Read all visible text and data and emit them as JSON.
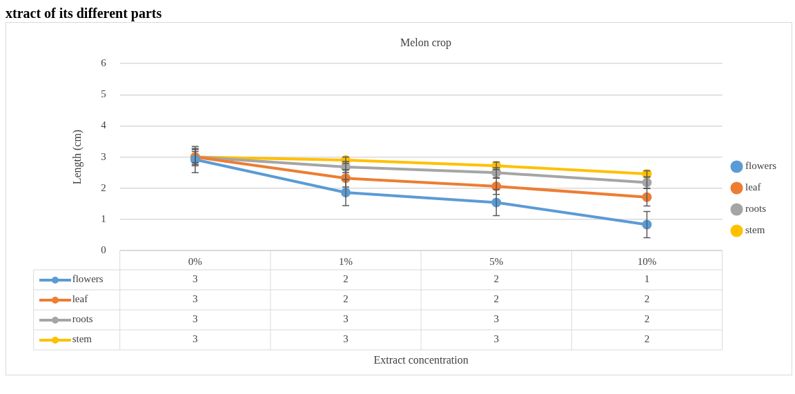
{
  "chart_data": {
    "type": "line",
    "title": "Melon crop",
    "ylabel": "Length (cm)",
    "annotations": [
      "xtract of its different parts",
      "Extract concentration"
    ],
    "categories": [
      "0%",
      "1%",
      "5%",
      "10%"
    ],
    "series": [
      {
        "name": "flowers",
        "color": "#5b9bd5",
        "values": [
          2.92,
          1.86,
          1.54,
          0.83
        ],
        "errors": [
          0.42,
          0.42,
          0.42,
          0.42
        ],
        "value_labels": [
          "3",
          "2",
          "2",
          "1"
        ]
      },
      {
        "name": "leaf",
        "color": "#ed7d31",
        "values": [
          3.0,
          2.32,
          2.06,
          1.71
        ],
        "errors": [
          0.28,
          0.28,
          0.26,
          0.28
        ],
        "value_labels": [
          "3",
          "2",
          "2",
          "2"
        ]
      },
      {
        "name": "roots",
        "color": "#a5a5a5",
        "values": [
          3.0,
          2.68,
          2.5,
          2.18
        ],
        "errors": [
          0.24,
          0.18,
          0.16,
          0.18
        ],
        "value_labels": [
          "3",
          "3",
          "3",
          "2"
        ]
      },
      {
        "name": "stem",
        "color": "#ffc000",
        "values": [
          3.0,
          2.9,
          2.72,
          2.46
        ],
        "errors": [
          0.18,
          0.1,
          0.12,
          0.1
        ],
        "value_labels": [
          "3",
          "3",
          "3",
          "2"
        ]
      }
    ],
    "ylim": [
      0,
      6
    ],
    "yticks": [
      0,
      1,
      2,
      3,
      4,
      5,
      6
    ],
    "grid": "y",
    "legend": "right",
    "marker": "circle",
    "line_style": "solid"
  }
}
